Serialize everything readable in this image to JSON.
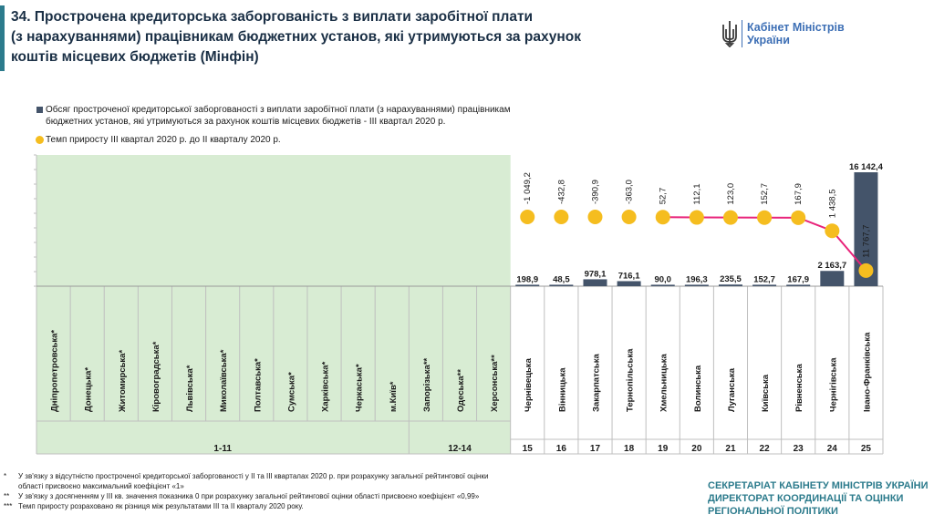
{
  "title_lines": [
    "34. Прострочена кредиторська заборгованість з виплати заробітної плати",
    "(з нарахуваннями) працівникам бюджетних установ, які утримуються за рахунок",
    "коштів місцевих бюджетів (Мінфін)"
  ],
  "logo": {
    "line1": "Кабінет Міністрів",
    "line2": "України",
    "icon": "trident-icon"
  },
  "legend": {
    "bar_label_1": "Обсяг простроченої кредиторської заборгованості з виплати заробітної плати (з нарахуваннями) працівникам",
    "bar_label_2": "бюджетних установ, які утримуються за рахунок коштів місцевих бюджетів - ІІІ квартал 2020 р.",
    "dot_label": "Темп приросту ІІІ квартал 2020 р. до ІІ кварталу 2020 р."
  },
  "colors": {
    "bar": "#44546a",
    "dot": "#f5bd1f",
    "line": "#e8247a",
    "shade": "#d8ecd3",
    "accent": "#2c7b8c"
  },
  "chart_data": {
    "type": "bar",
    "categories": [
      "Дніпропетровська*",
      "Донецька*",
      "Житомирська*",
      "Кіровоградська*",
      "Львівська*",
      "Миколаївська*",
      "Полтавська*",
      "Сумська*",
      "Харківська*",
      "Черкаська*",
      "м.Київ*",
      "Запорізька**",
      "Одеська**",
      "Херсонська**",
      "Чернівецька",
      "Вінницька",
      "Закарпатська",
      "Тернопільська",
      "Хмельницька",
      "Волинська",
      "Луганська",
      "Київська",
      "Рівненська",
      "Чернігівська",
      "Івано-Франківська"
    ],
    "series": [
      {
        "kind": "bar",
        "values": [
          0,
          0,
          0,
          0,
          0,
          0,
          0,
          0,
          0,
          0,
          0,
          0,
          0,
          0,
          198.9,
          48.5,
          978.1,
          716.1,
          90.0,
          196.3,
          235.5,
          152.7,
          167.9,
          2163.7,
          16142.4
        ],
        "labels": [
          "",
          "",
          "",
          "",
          "",
          "",
          "",
          "",
          "",
          "",
          "",
          "",
          "",
          "",
          "198,9",
          "48,5",
          "978,1",
          "716,1",
          "90,0",
          "196,3",
          "235,5",
          "152,7",
          "167,9",
          "2 163,7",
          "16 142,4"
        ]
      },
      {
        "kind": "dot",
        "values": [
          null,
          null,
          null,
          null,
          null,
          null,
          null,
          null,
          null,
          null,
          null,
          null,
          null,
          null,
          -1049.2,
          -432.8,
          -390.9,
          -363.0,
          52.7,
          112.1,
          123.0,
          152.7,
          167.9,
          1438.5,
          11767.7
        ],
        "labels": [
          "",
          "",
          "",
          "",
          "",
          "",
          "",
          "",
          "",
          "",
          "",
          "",
          "",
          "",
          "-1 049,2",
          "-432,8",
          "-390,9",
          "-363,0",
          "52,7",
          "112,1",
          "123,0",
          "152,7",
          "167,9",
          "1 438,5",
          "11 767,7"
        ],
        "line_from_index": 18
      }
    ],
    "groups": [
      {
        "label": "1-11",
        "from": 0,
        "to": 10
      },
      {
        "label": "12-14",
        "from": 11,
        "to": 13
      }
    ],
    "ranks": [
      "15",
      "16",
      "17",
      "18",
      "19",
      "20",
      "21",
      "22",
      "23",
      "24",
      "25"
    ]
  },
  "footnotes": [
    {
      "mark": "*",
      "lines": [
        "У зв'язку з відсутністю простроченої кредиторської заборгованості у ІІ та ІІІ кварталах 2020 р. при розрахунку загальної рейтингової оцінки",
        "області присвоєно максимальний коефіцієнт «1»"
      ]
    },
    {
      "mark": "**",
      "lines": [
        "У зв'язку з досягненням у ІІІ кв. значення показника 0 при розрахунку загальної рейтингової оцінки області присвоєно коефіцієнт «0,99»"
      ]
    },
    {
      "mark": "***",
      "lines": [
        "Темп приросту розраховано як різниця між результатами ІІІ та ІІ кварталу 2020 року."
      ]
    }
  ],
  "secretariat": [
    "СЕКРЕТАРІАТ КАБІНЕТУ МІНІСТРІВ УКРАЇНИ",
    "ДИРЕКТОРАТ КООРДИНАЦІЇ ТА ОЦІНКИ",
    "РЕГІОНАЛЬНОЇ ПОЛІТИКИ"
  ]
}
